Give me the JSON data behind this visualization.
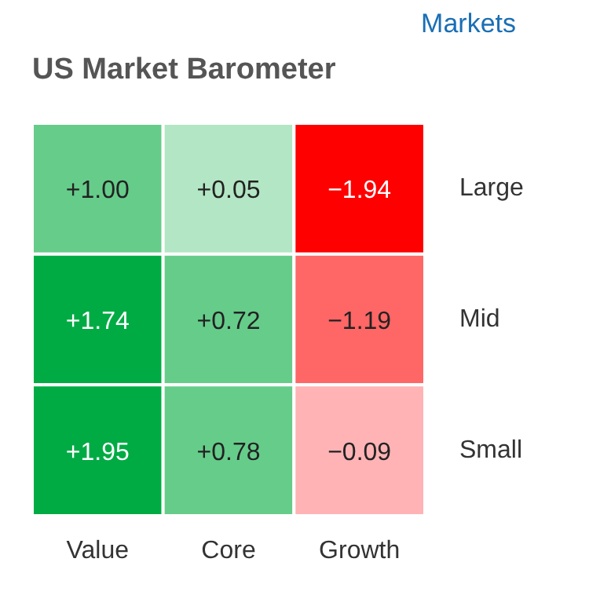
{
  "chart_data": {
    "type": "heatmap",
    "title": "US Market Barometer",
    "annotations": [
      "Markets"
    ],
    "categories": [
      "Value",
      "Core",
      "Growth"
    ],
    "y_categories": [
      "Large",
      "Mid",
      "Small"
    ],
    "cells": [
      [
        1.0,
        0.05,
        -1.94
      ],
      [
        1.74,
        0.72,
        -1.19
      ],
      [
        1.95,
        0.78,
        -0.09
      ]
    ],
    "cell_labels": [
      [
        "+1.00",
        "+0.05",
        "−1.94"
      ],
      [
        "+1.74",
        "+0.72",
        "−1.19"
      ],
      [
        "+1.95",
        "+0.78",
        "−0.09"
      ]
    ],
    "colors": [
      [
        "#66cc8a",
        "#b3e6c4",
        "#ff0000"
      ],
      [
        "#00ab44",
        "#66cc8a",
        "#ff6666"
      ],
      [
        "#00ab44",
        "#66cc8a",
        "#ffb3b5"
      ]
    ]
  }
}
